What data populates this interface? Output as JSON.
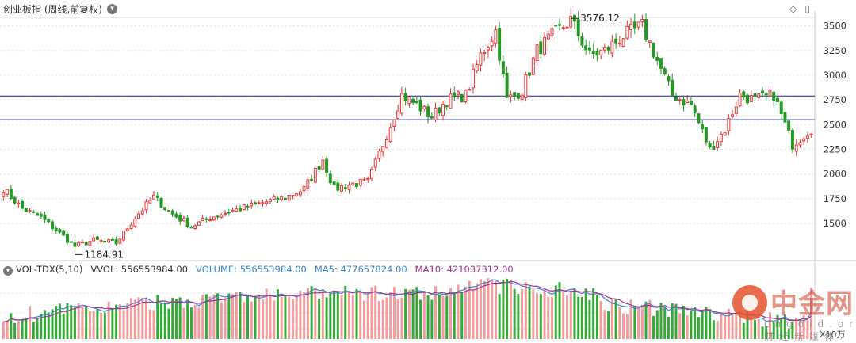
{
  "header": {
    "title": "创业板指 (周线,前复权)",
    "dropdown_icon": "chevron-down-icon",
    "tool_icons": [
      "diamond-icon",
      "window-icon"
    ]
  },
  "volume_header": {
    "indicator": "VOL-TDX(5,10)",
    "vvol": "VVOL: 556553984.00",
    "volume": "VOLUME: 556553984.00",
    "ma5": "MA5: 477657824.00",
    "ma10": "MA10: 421037312.00",
    "unit": "X10万"
  },
  "colors": {
    "up": "#ee3333",
    "down": "#229922",
    "volume_up": "#f49a9a",
    "volume_down": "#33aa33",
    "ma5": "#3a86c8",
    "ma10": "#a4348e",
    "hline": "#1a1a8a",
    "grid": "#e4e4e4"
  },
  "watermark": {
    "text": "中金网",
    "sub": "cngold.org 财经新媒体"
  },
  "chart_data": {
    "type": "candlestick",
    "ylim": [
      1180,
      3650
    ],
    "yticks": [
      1500,
      1750,
      2000,
      2250,
      2500,
      2750,
      3000,
      3250,
      3500
    ],
    "horizontal_lines": [
      2790,
      2550
    ],
    "annotations": [
      {
        "label": "3576.12",
        "value": 3576.12,
        "index": 151
      },
      {
        "label": "1184.91",
        "value": 1184.91,
        "index": 19
      }
    ],
    "close_path": [
      [
        0,
        1850
      ],
      [
        5,
        1650
      ],
      [
        10,
        1560
      ],
      [
        15,
        1400
      ],
      [
        19,
        1270
      ],
      [
        24,
        1330
      ],
      [
        30,
        1300
      ],
      [
        35,
        1560
      ],
      [
        40,
        1770
      ],
      [
        44,
        1620
      ],
      [
        50,
        1470
      ],
      [
        55,
        1560
      ],
      [
        60,
        1620
      ],
      [
        65,
        1670
      ],
      [
        70,
        1720
      ],
      [
        75,
        1760
      ],
      [
        80,
        1850
      ],
      [
        85,
        2150
      ],
      [
        88,
        1850
      ],
      [
        93,
        1900
      ],
      [
        97,
        1920
      ],
      [
        102,
        2400
      ],
      [
        106,
        2800
      ],
      [
        110,
        2700
      ],
      [
        114,
        2580
      ],
      [
        118,
        2750
      ],
      [
        123,
        2800
      ],
      [
        127,
        3200
      ],
      [
        131,
        3450
      ],
      [
        134,
        2750
      ],
      [
        138,
        2850
      ],
      [
        142,
        3250
      ],
      [
        146,
        3400
      ],
      [
        151,
        3560
      ],
      [
        156,
        3200
      ],
      [
        160,
        3250
      ],
      [
        165,
        3400
      ],
      [
        170,
        3500
      ],
      [
        174,
        3150
      ],
      [
        178,
        2800
      ],
      [
        183,
        2700
      ],
      [
        188,
        2250
      ],
      [
        192,
        2450
      ],
      [
        196,
        2800
      ],
      [
        200,
        2750
      ],
      [
        205,
        2800
      ],
      [
        210,
        2300
      ],
      [
        215,
        2460
      ]
    ],
    "volume": {
      "ylim": [
        0,
        650
      ],
      "last": 556553984.0,
      "ma5": 477657824.0,
      "ma10": 421037312.0
    }
  }
}
